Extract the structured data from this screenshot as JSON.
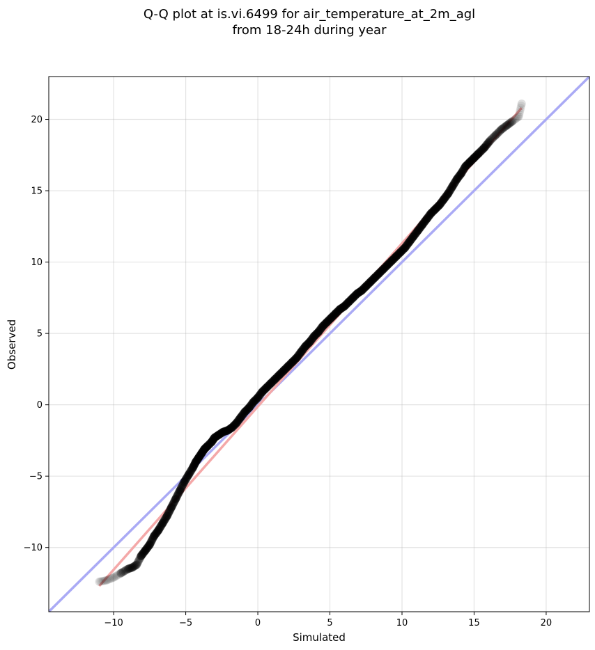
{
  "chart_data": {
    "type": "scatter",
    "title_line1": "Q-Q plot at is.vi.6499 for air_temperature_at_2m_agl",
    "title_line2": "from 18-24h during year",
    "xlabel": "Simulated",
    "ylabel": "Observed",
    "xlim": [
      -14.5,
      23
    ],
    "ylim": [
      -14.5,
      23
    ],
    "xticks": [
      -10,
      -5,
      0,
      5,
      10,
      15,
      20
    ],
    "xtick_labels": [
      "−10",
      "−5",
      "0",
      "5",
      "10",
      "15",
      "20"
    ],
    "yticks": [
      -10,
      -5,
      0,
      5,
      10,
      15,
      20
    ],
    "ytick_labels": [
      "−10",
      "−5",
      "0",
      "5",
      "10",
      "15",
      "20"
    ],
    "grid": true,
    "reference_line": {
      "x": [
        -14.5,
        23
      ],
      "y": [
        -14.5,
        23
      ],
      "color": "#aaaaf5"
    },
    "fit_line": {
      "x": [
        -11.0,
        18.3
      ],
      "y": [
        -12.7,
        20.8
      ],
      "color": "#f4a8a8"
    },
    "marker_color": "#000000",
    "quantile_points": {
      "x": [
        -11.0,
        -10.5,
        -10.0,
        -9.5,
        -9.0,
        -8.7,
        -8.4,
        -8.1,
        -7.8,
        -7.5,
        -7.2,
        -6.9,
        -6.6,
        -6.3,
        -6.0,
        -5.7,
        -5.4,
        -5.1,
        -4.8,
        -4.5,
        -4.3,
        -4.1,
        -3.9,
        -3.7,
        -3.5,
        -3.2,
        -3.0,
        -2.7,
        -2.4,
        -2.1,
        -1.8,
        -1.5,
        -1.2,
        -0.9,
        -0.6,
        -0.3,
        0.0,
        0.3,
        0.6,
        0.9,
        1.2,
        1.5,
        1.8,
        2.1,
        2.4,
        2.7,
        3.0,
        3.3,
        3.6,
        3.9,
        4.2,
        4.5,
        4.8,
        5.1,
        5.4,
        5.7,
        6.0,
        6.3,
        6.6,
        6.9,
        7.2,
        7.5,
        7.8,
        8.1,
        8.4,
        8.7,
        9.0,
        9.3,
        9.6,
        9.9,
        10.2,
        10.5,
        10.8,
        11.1,
        11.4,
        11.7,
        12.0,
        12.3,
        12.6,
        12.9,
        13.2,
        13.5,
        13.8,
        14.1,
        14.4,
        14.7,
        15.0,
        15.3,
        15.7,
        16.1,
        16.5,
        16.9,
        17.3,
        17.7,
        18.1,
        18.3
      ],
      "y": [
        -12.4,
        -12.3,
        -12.1,
        -11.8,
        -11.5,
        -11.4,
        -11.2,
        -10.6,
        -10.2,
        -9.8,
        -9.2,
        -8.8,
        -8.3,
        -7.8,
        -7.2,
        -6.6,
        -6.0,
        -5.4,
        -4.9,
        -4.4,
        -4.0,
        -3.7,
        -3.4,
        -3.1,
        -2.9,
        -2.6,
        -2.3,
        -2.1,
        -1.9,
        -1.8,
        -1.6,
        -1.3,
        -0.9,
        -0.5,
        -0.2,
        0.2,
        0.5,
        0.9,
        1.2,
        1.5,
        1.8,
        2.1,
        2.4,
        2.7,
        3.0,
        3.3,
        3.7,
        4.1,
        4.4,
        4.8,
        5.1,
        5.5,
        5.8,
        6.1,
        6.4,
        6.7,
        6.9,
        7.2,
        7.5,
        7.8,
        8.0,
        8.3,
        8.6,
        8.9,
        9.2,
        9.5,
        9.8,
        10.1,
        10.4,
        10.7,
        11.0,
        11.4,
        11.8,
        12.2,
        12.6,
        13.0,
        13.4,
        13.7,
        14.0,
        14.4,
        14.8,
        15.3,
        15.8,
        16.2,
        16.7,
        17.0,
        17.3,
        17.6,
        18.0,
        18.5,
        18.9,
        19.3,
        19.6,
        19.9,
        20.2,
        21.1
      ]
    }
  }
}
